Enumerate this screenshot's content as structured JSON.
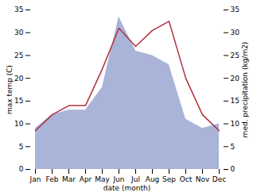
{
  "chart_data": {
    "type": "line",
    "xlabel": "date (month)",
    "ylabel": "max temp (C)",
    "y2label": "med. precipitation (kg/m2)",
    "categories": [
      "Jan",
      "Feb",
      "Mar",
      "Apr",
      "May",
      "Jun",
      "Jul",
      "Aug",
      "Sep",
      "Oct",
      "Nov",
      "Dec"
    ],
    "series": [
      {
        "name": "med. precipitation (kg/m2)",
        "type": "area",
        "axis": "y2",
        "color": "#aab4d8",
        "values": [
          9.0,
          12.0,
          13.0,
          13.0,
          18.0,
          33.5,
          26.0,
          25.0,
          23.0,
          11.0,
          9.0,
          10.0
        ]
      },
      {
        "name": "max temp (C)",
        "type": "line",
        "color": "#b03040",
        "values": [
          8.5,
          12.0,
          14.0,
          14.0,
          22.0,
          31.0,
          27.0,
          30.5,
          32.5,
          20.0,
          12.0,
          8.5
        ]
      }
    ],
    "ylim": [
      0,
      35
    ],
    "yticks": [
      0,
      5,
      10,
      15,
      20,
      25,
      30,
      35
    ],
    "y2lim": [
      0,
      35
    ],
    "y2ticks": [
      0,
      5,
      10,
      15,
      20,
      25,
      30,
      35
    ]
  }
}
